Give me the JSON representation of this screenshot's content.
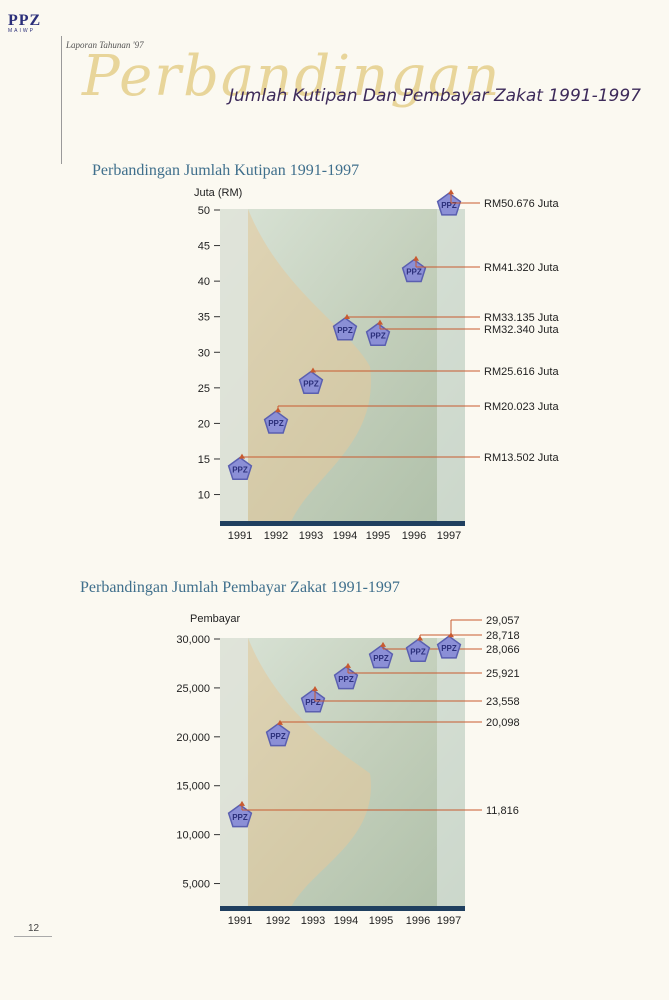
{
  "header": {
    "logo_text": "PPZ",
    "logo_sub": "MAIWP",
    "report_label": "Laporan Tahunan '97",
    "script_title": "Perbandingan",
    "title": "Jumlah Kutipan Dan Pembayar Zakat 1991-1997"
  },
  "marker_label": "PPZ",
  "page_number": "12",
  "colors": {
    "bg_panel": "#c3cfbb",
    "marker_fill": "#8b8fd6",
    "marker_stroke": "#5a5fb0",
    "arrow": "#c85a30",
    "base_bar": "#1f3f5f"
  },
  "chart_data": [
    {
      "type": "scatter",
      "title": "Perbandingan Jumlah Kutipan 1991-1997",
      "ylabel": "Juta (RM)",
      "categories": [
        "1991",
        "1992",
        "1993",
        "1994",
        "1995",
        "1996",
        "1997"
      ],
      "values": [
        13.502,
        20.023,
        25.616,
        33.135,
        32.34,
        41.32,
        50.676
      ],
      "yticks": [
        "50",
        "45",
        "40",
        "35",
        "30",
        "25",
        "20",
        "15",
        "10"
      ],
      "ylim": [
        6,
        50
      ],
      "annotations": [
        "RM13.502 Juta",
        "RM20.023 Juta",
        "RM25.616 Juta",
        "RM33.135 Juta",
        "RM32.340 Juta",
        "RM41.320 Juta",
        "RM50.676 Juta"
      ]
    },
    {
      "type": "scatter",
      "title": "Perbandingan Jumlah Pembayar Zakat 1991-1997",
      "ylabel": "Pembayar",
      "categories": [
        "1991",
        "1992",
        "1993",
        "1994",
        "1995",
        "1996",
        "1997"
      ],
      "values": [
        11816,
        20098,
        23558,
        25921,
        28066,
        28718,
        29057
      ],
      "yticks": [
        "30,000",
        "25,000",
        "20,000",
        "15,000",
        "10,000",
        "5,000"
      ],
      "ylim": [
        2500,
        30000
      ],
      "annotations": [
        "11,816",
        "20,098",
        "23,558",
        "25,921",
        "28,066",
        "28,718",
        "29,057"
      ]
    }
  ]
}
